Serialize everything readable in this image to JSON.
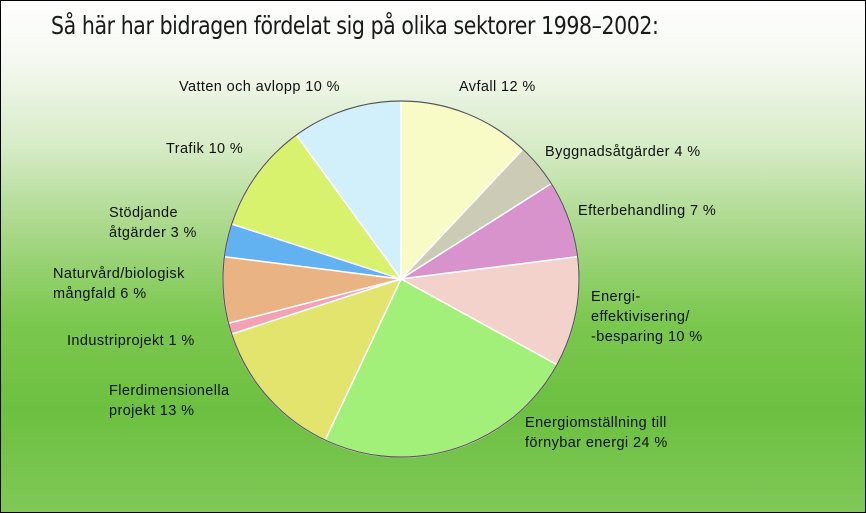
{
  "chart_data": {
    "type": "pie",
    "title": "Så här har bidragen fördelat sig på olika sektorer 1998–2002:",
    "categories": [
      "Avfall",
      "Byggnadsåtgärder",
      "Efterbehandling",
      "Energi-\neffektivisering/\n-besparing",
      "Energiomställning till\nförnybar energi",
      "Flerdimensionella\nprojekt",
      "Industriprojekt",
      "Naturvård/biologisk\nmångfald",
      "Stödjande\nåtgärder",
      "Trafik",
      "Vatten och avlopp"
    ],
    "values": [
      12,
      4,
      7,
      10,
      24,
      13,
      1,
      6,
      3,
      10,
      10
    ],
    "value_labels": [
      "12 %",
      "4 %",
      "7 %",
      "10 %",
      "24 %",
      "13 %",
      "1 %",
      "6 %",
      "3 %",
      "10 %",
      "10 %"
    ],
    "colors": [
      "#f8fbc6",
      "#cbcbb6",
      "#d892cc",
      "#f2d2cb",
      "#a2f07a",
      "#e2e46e",
      "#f2a2b4",
      "#eab384",
      "#62b2f2",
      "#d8f26e",
      "#d2f0fc"
    ]
  }
}
